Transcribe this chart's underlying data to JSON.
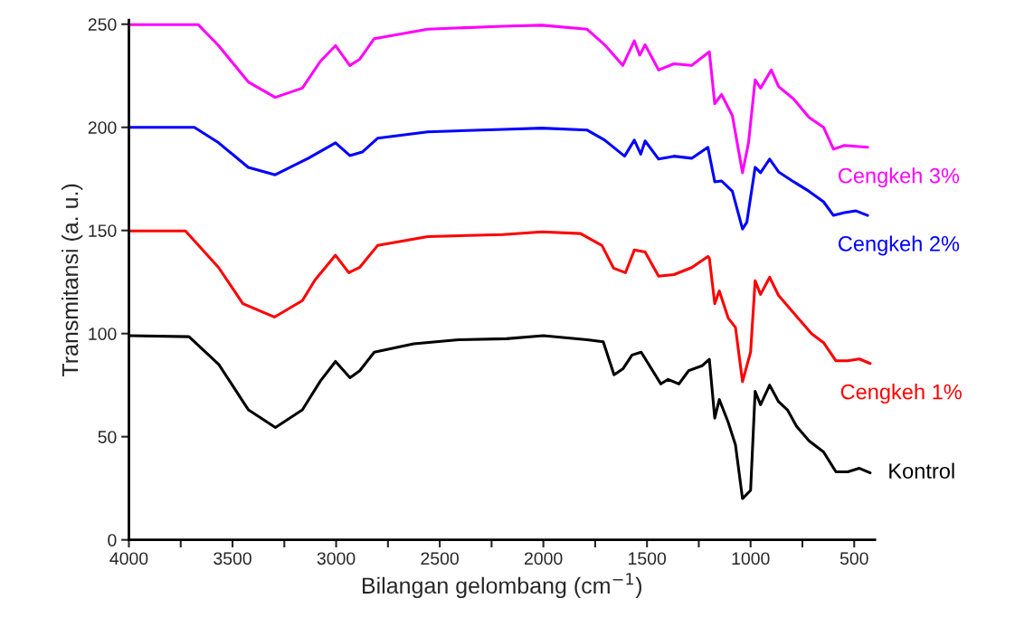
{
  "chart_data": {
    "type": "line",
    "xlabel": "Bilangan gelombang (cm$^{−1}$)",
    "ylabel": "Transmitansi (a. u.)",
    "xlim": [
      4000,
      400
    ],
    "ylim": [
      0,
      252
    ],
    "xticks": [
      4000,
      {
        "value": 3750,
        "label": null
      },
      3500,
      {
        "value": 3250,
        "label": null
      },
      3000,
      {
        "value": 2750,
        "label": null
      },
      2500,
      {
        "value": 2250,
        "label": null
      },
      2000,
      {
        "value": 1750,
        "label": null
      },
      1500,
      {
        "value": 1250,
        "label": null
      },
      1000,
      {
        "value": 750,
        "label": null
      },
      500
    ],
    "yticks": [
      0,
      50,
      100,
      150,
      200,
      250
    ],
    "grid": false,
    "legend": false,
    "marker": "none",
    "line_style": "solid",
    "series": [
      {
        "name": "Kontrol",
        "color": "#000000",
        "x": [
          4000,
          3710,
          3566,
          3423,
          3293,
          3163,
          3076,
          3003,
          2933,
          2886,
          2816,
          2626,
          2409,
          2179,
          2000,
          1789,
          1711,
          1659,
          1615,
          1572,
          1528,
          1433,
          1398,
          1346,
          1299,
          1234,
          1199,
          1173,
          1151,
          1108,
          1073,
          1039,
          1000,
          978,
          952,
          908,
          865,
          822,
          778,
          718,
          648,
          588,
          531,
          475,
          423
        ],
        "values": [
          99,
          98.5,
          85,
          63,
          54.5,
          63,
          77,
          86.5,
          78.6,
          82,
          91,
          95,
          97,
          97.5,
          99,
          97,
          96,
          80,
          83,
          89.6,
          91,
          75.6,
          77.8,
          75.6,
          82,
          84.4,
          87.5,
          59,
          68,
          57,
          46,
          20,
          24,
          72,
          65.5,
          75,
          67,
          63,
          55,
          48,
          42.6,
          33,
          33,
          34.7,
          32.5
        ]
      },
      {
        "name": "Cengkeh 1%",
        "color": "#ff0000",
        "x": [
          4000,
          3727,
          3567,
          3450,
          3298,
          3163,
          3102,
          3003,
          2939,
          2887,
          2800,
          2558,
          2193,
          2007,
          1821,
          1717,
          1661,
          1604,
          1561,
          1509,
          1444,
          1370,
          1284,
          1206,
          1199,
          1173,
          1151,
          1108,
          1073,
          1039,
          1000,
          978,
          952,
          908,
          865,
          792,
          706,
          648,
          588,
          531,
          475,
          423
        ],
        "values": [
          149.8,
          149.8,
          132,
          114.5,
          108,
          116,
          126,
          138,
          129.5,
          132,
          142.7,
          147,
          148,
          149.3,
          148.5,
          142.7,
          131.7,
          129.5,
          140.5,
          139.6,
          127.8,
          128.6,
          132,
          137.4,
          136.6,
          114.5,
          120.7,
          107.5,
          103,
          76.7,
          91,
          125.6,
          119,
          127.3,
          118.5,
          110,
          100,
          95.6,
          86.8,
          86.8,
          87.7,
          85.5
        ]
      },
      {
        "name": "Cengkeh 2%",
        "color": "#0000ff",
        "x": [
          4000,
          3684,
          3567,
          3424,
          3294,
          3134,
          3003,
          2934,
          2874,
          2800,
          2558,
          2193,
          2007,
          1790,
          1704,
          1608,
          1561,
          1530,
          1509,
          1444,
          1370,
          1284,
          1206,
          1173,
          1140,
          1088,
          1039,
          1018,
          978,
          952,
          908,
          865,
          792,
          718,
          648,
          600,
          547,
          491,
          435
        ],
        "values": [
          200,
          200,
          192.5,
          180.6,
          177,
          185,
          192.5,
          186.3,
          188,
          194.7,
          197.8,
          199,
          199.6,
          198.7,
          193.8,
          186,
          193.8,
          187,
          193.4,
          184.6,
          186,
          185,
          190.3,
          173.6,
          174,
          169,
          150.7,
          154,
          180.6,
          178,
          184.6,
          178.4,
          173.6,
          169,
          163.9,
          157.3,
          158.6,
          159.5,
          157.3
        ]
      },
      {
        "name": "Cengkeh 3%",
        "color": "#ff00ff",
        "x": [
          4000,
          3666,
          3567,
          3424,
          3294,
          3163,
          3076,
          3003,
          2934,
          2886,
          2816,
          2558,
          2193,
          2007,
          1790,
          1704,
          1617,
          1561,
          1535,
          1509,
          1444,
          1370,
          1284,
          1199,
          1173,
          1140,
          1088,
          1039,
          1010,
          978,
          952,
          900,
          865,
          792,
          718,
          648,
          600,
          547,
          435
        ],
        "values": [
          249.8,
          249.8,
          239.6,
          222,
          214.5,
          219,
          232,
          239.6,
          230,
          233,
          243,
          247.6,
          249,
          249.5,
          247.6,
          240,
          230,
          241.9,
          235,
          240,
          227.8,
          230.8,
          230,
          236.6,
          211.5,
          215.9,
          205.7,
          178,
          192.5,
          223,
          219,
          227.8,
          219.8,
          213.7,
          204.8,
          200,
          189.4,
          191.2,
          190.3
        ]
      }
    ]
  }
}
